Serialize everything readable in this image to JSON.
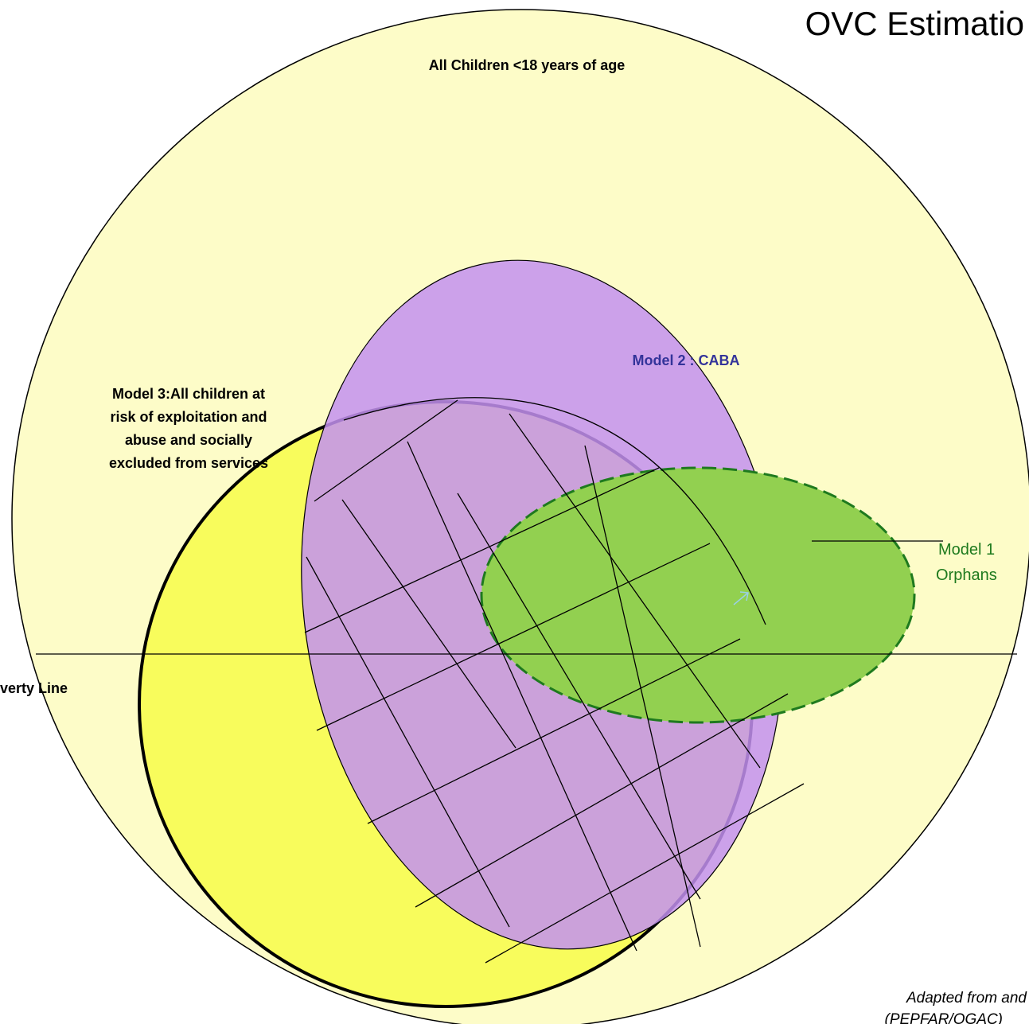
{
  "title": "OVC Estimatio",
  "outer_label": "All Children <18 years of age",
  "model2_label": "Model 2  : CABA",
  "model3_label": [
    "Model 3:All children at",
    "risk of exploitation and",
    "abuse and socially",
    "excluded from services"
  ],
  "model1_label": [
    "Model 1",
    "Orphans"
  ],
  "poverty_label": "verty Line",
  "source": [
    "Adapted from  and",
    "(PEPFAR/OGAC)"
  ]
}
